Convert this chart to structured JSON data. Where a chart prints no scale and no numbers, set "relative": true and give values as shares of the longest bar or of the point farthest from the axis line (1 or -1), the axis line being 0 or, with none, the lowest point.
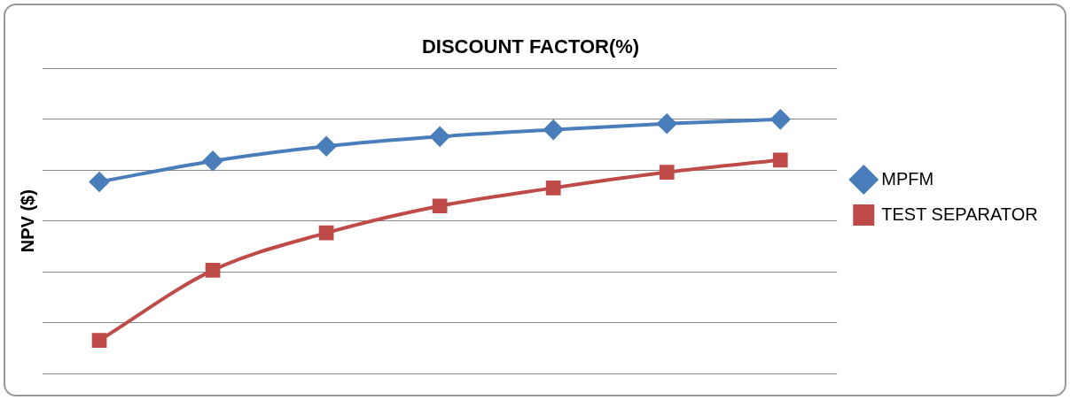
{
  "chart_data": {
    "type": "line",
    "title": "DISCOUNT FACTOR(%)",
    "ylabel": "NPV ($)",
    "relative": true,
    "grid": "y",
    "legend": "right",
    "line_style": "solid",
    "categories": [
      null,
      null,
      null,
      null,
      null,
      null,
      null
    ],
    "series": [
      {
        "name": "MPFM",
        "color": "#4a7ebb",
        "marker": "diamond",
        "values": [
          0.754,
          0.836,
          0.894,
          0.932,
          0.959,
          0.983,
          1
        ]
      },
      {
        "name": "TEST SEPARATOR",
        "color": "#be4b48",
        "marker": "square",
        "values": [
          0.13,
          0.406,
          0.553,
          0.659,
          0.73,
          0.792,
          0.84
        ]
      }
    ]
  }
}
